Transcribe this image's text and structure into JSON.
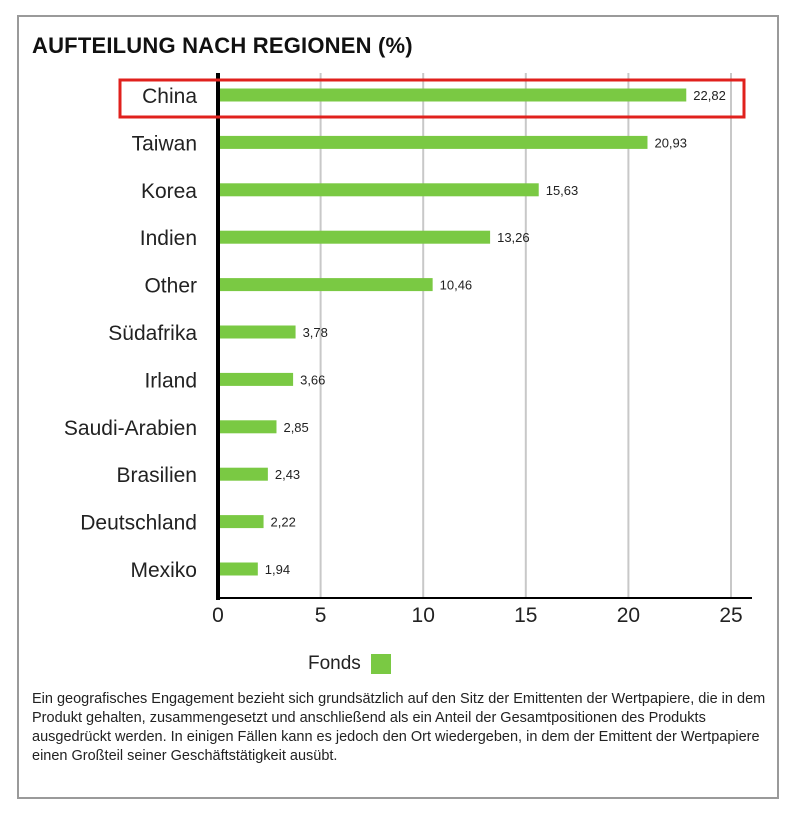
{
  "chart_data": {
    "type": "bar",
    "orientation": "horizontal",
    "title": "AUFTEILUNG NACH REGIONEN (%)",
    "categories": [
      "China",
      "Taiwan",
      "Korea",
      "Indien",
      "Other",
      "Südafrika",
      "Irland",
      "Saudi-Arabien",
      "Brasilien",
      "Deutschland",
      "Mexiko"
    ],
    "value_labels": [
      "22,82",
      "20,93",
      "15,63",
      "13,26",
      "10,46",
      "3,78",
      "3,66",
      "2,85",
      "2,43",
      "2,22",
      "1,94"
    ],
    "series": [
      {
        "name": "Fonds",
        "values": [
          22.82,
          20.93,
          15.63,
          13.26,
          10.46,
          3.78,
          3.66,
          2.85,
          2.43,
          2.22,
          1.94
        ]
      }
    ],
    "xlim": [
      0,
      25
    ],
    "x_ticks": [
      0,
      5,
      10,
      15,
      20,
      25
    ],
    "x_tick_labels": [
      "0",
      "5",
      "10",
      "15",
      "20",
      "25"
    ],
    "grid": "vertical",
    "legend_position": "bottom-center",
    "highlighted_category": "China",
    "bar_color": "#7ac943",
    "grid_color": "#c8c8c8",
    "highlight_color": "#e0211d"
  },
  "legend": {
    "label": "Fonds"
  },
  "footnote": "Ein geografisches Engagement bezieht sich grundsätzlich auf den Sitz der Emittenten der Wertpapiere, die in dem Produkt gehalten, zusammengesetzt und anschließend als ein Anteil der Gesamtpositionen des Produkts ausgedrückt werden. In einigen Fällen kann es jedoch den Ort wiedergeben, in dem der Emittent der Wertpapiere einen Großteil seiner Geschäftstätigkeit ausübt."
}
